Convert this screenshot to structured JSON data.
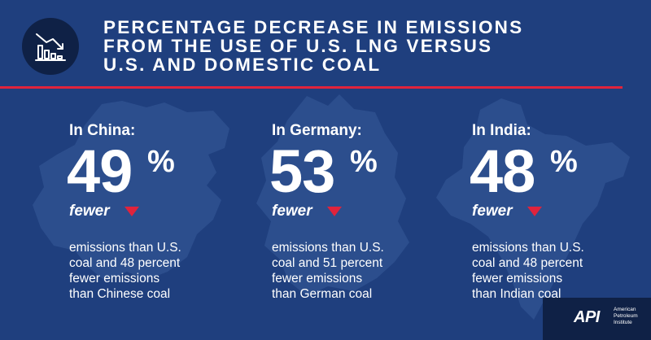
{
  "title_lines": [
    "PERCENTAGE DECREASE IN EMISSIONS",
    "FROM THE USE OF U.S. LNG VERSUS",
    "U.S. AND DOMESTIC COAL"
  ],
  "icon": "declining-bar-chart-icon",
  "columns": [
    {
      "country_label": "In China:",
      "value": "49",
      "percent_sign": "%",
      "fewer_label": "fewer",
      "description_lines": [
        "emissions than U.S.",
        "coal and 48 percent",
        "fewer emissions",
        "than Chinese coal"
      ],
      "map_shape": "china-map-silhouette"
    },
    {
      "country_label": "In Germany:",
      "value": "53",
      "percent_sign": "%",
      "fewer_label": "fewer",
      "description_lines": [
        "emissions than U.S.",
        "coal and 51 percent",
        "fewer emissions",
        "than German coal"
      ],
      "map_shape": "germany-map-silhouette"
    },
    {
      "country_label": "In India:",
      "value": "48",
      "percent_sign": "%",
      "fewer_label": "fewer",
      "description_lines": [
        "emissions than U.S.",
        "coal and 48 percent",
        "fewer emissions",
        "than Indian coal"
      ],
      "map_shape": "india-map-silhouette"
    }
  ],
  "logo": {
    "mark": "API",
    "text_lines": [
      "American",
      "Petroleum",
      "Institute"
    ]
  },
  "colors": {
    "background": "#1f3f7e",
    "map_fill": "#2c4e8d",
    "accent_red": "#e0233c",
    "badge_dark": "#0f2146",
    "text": "#ffffff"
  }
}
